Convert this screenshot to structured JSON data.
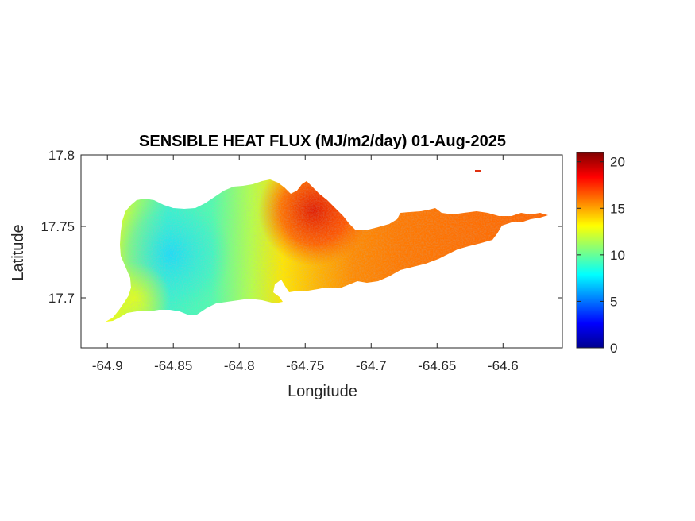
{
  "chart_data": {
    "type": "heatmap",
    "title": "SENSIBLE HEAT FLUX (MJ/m2/day) 01-Aug-2025",
    "xlabel": "Longitude",
    "ylabel": "Latitude",
    "xlim": [
      -64.92,
      -64.555
    ],
    "ylim": [
      17.665,
      17.8
    ],
    "x_ticks": [
      -64.9,
      -64.85,
      -64.8,
      -64.75,
      -64.7,
      -64.65,
      -64.6
    ],
    "x_tick_labels": [
      "-64.9",
      "-64.85",
      "-64.8",
      "-64.75",
      "-64.7",
      "-64.65",
      "-64.6"
    ],
    "y_ticks": [
      17.7,
      17.75,
      17.8
    ],
    "y_tick_labels": [
      "17.7",
      "17.75",
      "17.8"
    ],
    "colorbar": {
      "colormap": "jet",
      "min": 0,
      "max": 21,
      "ticks": [
        0,
        5,
        10,
        15,
        20
      ],
      "tick_labels": [
        "0",
        "5",
        "10",
        "15",
        "20"
      ]
    },
    "field_trend": {
      "description_values_by_longitude": [
        {
          "lon": -64.9,
          "value": 11
        },
        {
          "lon": -64.86,
          "value": 8
        },
        {
          "lon": -64.82,
          "value": 9
        },
        {
          "lon": -64.78,
          "value": 12
        },
        {
          "lon": -64.75,
          "value": 15
        },
        {
          "lon": -64.72,
          "value": 15.5
        },
        {
          "lon": -64.7,
          "value": 16
        },
        {
          "lon": -64.67,
          "value": 16.5
        },
        {
          "lon": -64.62,
          "value": 16.5
        },
        {
          "lon": -64.58,
          "value": 17
        }
      ],
      "hotspot": {
        "lon": -64.75,
        "lat": 17.765,
        "value": 19.5
      }
    },
    "grid": false
  }
}
